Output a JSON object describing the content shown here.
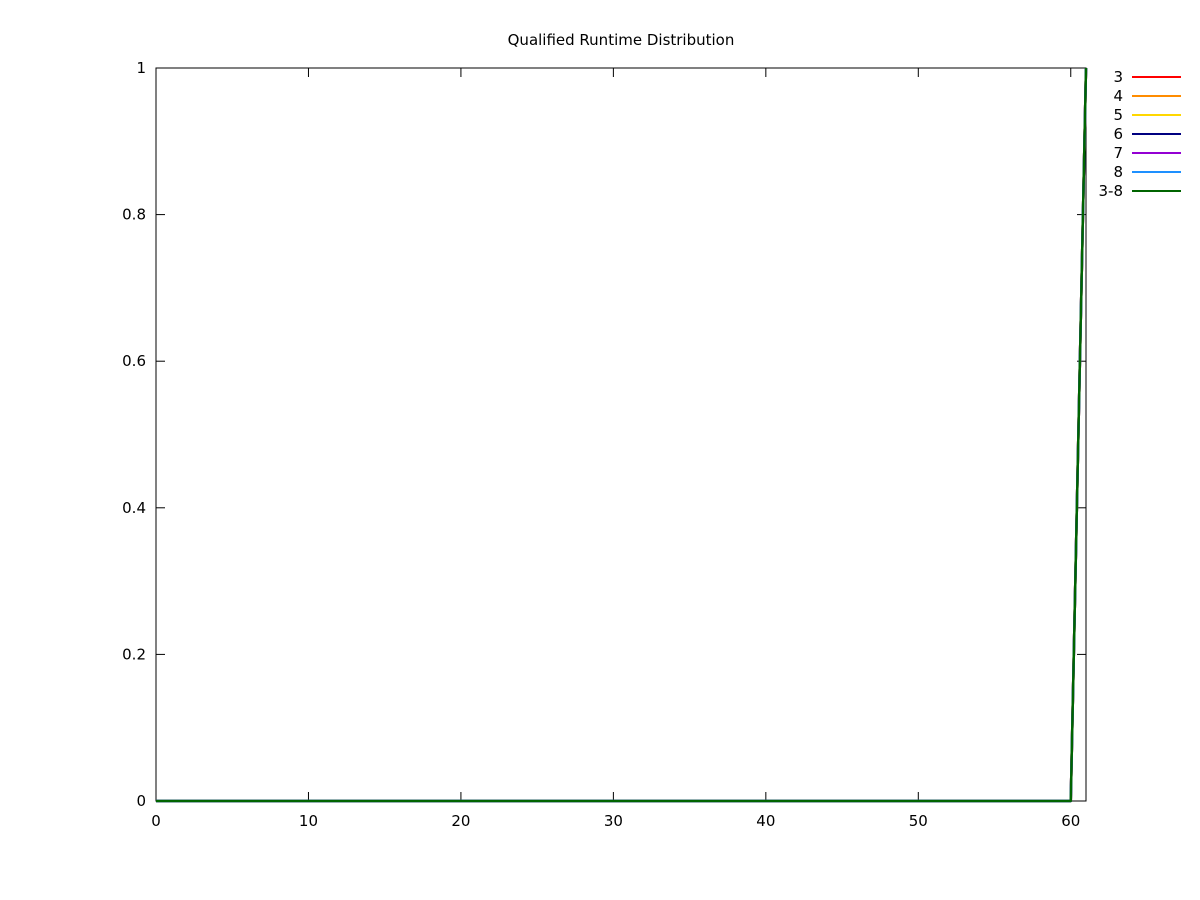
{
  "chart_data": {
    "type": "line",
    "title": "Qualified Runtime Distribution",
    "xlabel": "",
    "ylabel": "",
    "xlim": [
      0,
      61
    ],
    "ylim": [
      0,
      1
    ],
    "x_ticks": [
      0,
      10,
      20,
      30,
      40,
      50,
      60
    ],
    "y_ticks": [
      0,
      0.2,
      0.4,
      0.6,
      0.8,
      1
    ],
    "x_tick_labels": [
      "0",
      "10",
      "20",
      "30",
      "40",
      "50",
      "60"
    ],
    "y_tick_labels": [
      "0",
      "0.2",
      "0.4",
      "0.6",
      "0.8",
      "1"
    ],
    "grid": false,
    "legend_position": "outside-top-right",
    "series": [
      {
        "name": "3",
        "color": "#ff0000",
        "x": [
          0,
          60,
          61
        ],
        "y": [
          0,
          0,
          1
        ]
      },
      {
        "name": "4",
        "color": "#ff8c00",
        "x": [
          0,
          60,
          61
        ],
        "y": [
          0,
          0,
          1
        ]
      },
      {
        "name": "5",
        "color": "#ffd700",
        "x": [
          0,
          60,
          61
        ],
        "y": [
          0,
          0,
          1
        ]
      },
      {
        "name": "6",
        "color": "#000080",
        "x": [
          0,
          60,
          61
        ],
        "y": [
          0,
          0,
          1
        ]
      },
      {
        "name": "7",
        "color": "#9400d3",
        "x": [
          0,
          60,
          61
        ],
        "y": [
          0,
          0,
          1
        ]
      },
      {
        "name": "8",
        "color": "#1e90ff",
        "x": [
          0,
          60,
          61
        ],
        "y": [
          0,
          0,
          1
        ]
      },
      {
        "name": "3-8",
        "color": "#006400",
        "x": [
          0,
          60,
          61
        ],
        "y": [
          0,
          0,
          1
        ]
      }
    ]
  }
}
